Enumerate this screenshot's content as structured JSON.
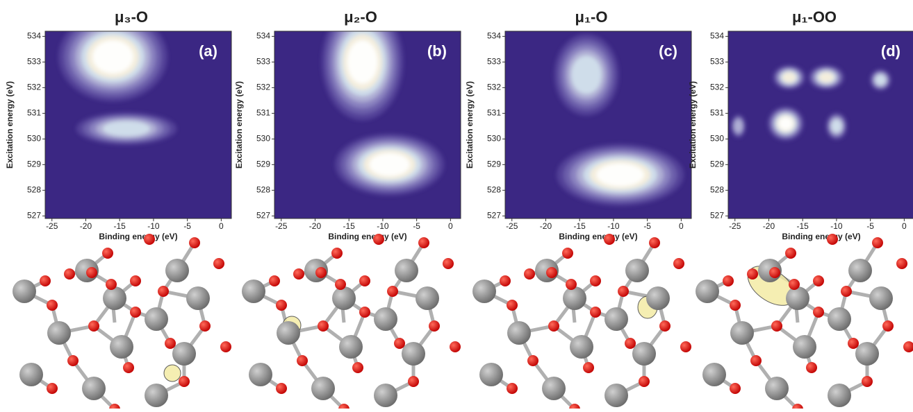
{
  "chart_data": [
    {
      "type": "contour",
      "title": "μ₃-O",
      "label": "(a)",
      "x_label": "Binding energy (eV)",
      "y_label": "Excitation energy (eV)",
      "xlim": [
        -26,
        1.5
      ],
      "ylim": [
        526.9,
        534.2
      ],
      "xticks": [
        -25,
        -20,
        -15,
        -10,
        -5,
        0
      ],
      "yticks": [
        527,
        528,
        529,
        530,
        531,
        532,
        533,
        534
      ],
      "colors": [
        "#3b2783",
        "#54449a",
        "#6f62ad",
        "#8e86c2",
        "#b2b3d6",
        "#d3e2ec",
        "#f7efdc",
        "#ffffff"
      ],
      "peaks": [
        {
          "x": -16,
          "y": 533.2,
          "sx": 6,
          "sy": 1.3,
          "level": 7
        },
        {
          "x": -14,
          "y": 530.4,
          "sx": 7,
          "sy": 0.6,
          "level": 5
        }
      ]
    },
    {
      "type": "contour",
      "title": "μ₂-O",
      "label": "(b)",
      "x_label": "Binding energy (eV)",
      "y_label": "Excitation energy (eV)",
      "xlim": [
        -26,
        1.5
      ],
      "ylim": [
        526.9,
        534.2
      ],
      "xticks": [
        -25,
        -20,
        -15,
        -10,
        -5,
        0
      ],
      "yticks": [
        527,
        528,
        529,
        530,
        531,
        532,
        533,
        534
      ],
      "colors": [
        "#3b2783",
        "#54449a",
        "#6f62ad",
        "#8e86c2",
        "#b2b3d6",
        "#d3e2ec",
        "#f7efdc",
        "#ffffff"
      ],
      "peaks": [
        {
          "x": -13,
          "y": 533,
          "sx": 4.5,
          "sy": 1.7,
          "level": 7
        },
        {
          "x": -9,
          "y": 529,
          "sx": 6,
          "sy": 0.9,
          "level": 7
        }
      ]
    },
    {
      "type": "contour",
      "title": "μ₁-O",
      "label": "(c)",
      "x_label": "Binding energy (eV)",
      "y_label": "Excitation energy (eV)",
      "xlim": [
        -26,
        1.5
      ],
      "ylim": [
        526.9,
        534.2
      ],
      "xticks": [
        -25,
        -20,
        -15,
        -10,
        -5,
        0
      ],
      "yticks": [
        527,
        528,
        529,
        530,
        531,
        532,
        533,
        534
      ],
      "colors": [
        "#3b2783",
        "#54449a",
        "#6f62ad",
        "#8e86c2",
        "#b2b3d6",
        "#d3e2ec",
        "#f7efdc",
        "#ffffff"
      ],
      "peaks": [
        {
          "x": -14,
          "y": 532.5,
          "sx": 4.5,
          "sy": 1.5,
          "level": 5
        },
        {
          "x": -9,
          "y": 528.6,
          "sx": 7,
          "sy": 0.9,
          "level": 7
        }
      ]
    },
    {
      "type": "contour",
      "title": "μ₁-OO",
      "label": "(d)",
      "x_label": "Binding energy (eV)",
      "y_label": "Excitation energy (eV)",
      "xlim": [
        -26,
        1.5
      ],
      "ylim": [
        526.9,
        534.2
      ],
      "xticks": [
        -25,
        -20,
        -15,
        -10,
        -5,
        0
      ],
      "yticks": [
        527,
        528,
        529,
        530,
        531,
        532,
        533,
        534
      ],
      "colors": [
        "#3b2783",
        "#54449a",
        "#6f62ad",
        "#8e86c2",
        "#b2b3d6",
        "#d3e2ec",
        "#f7efdc",
        "#ffffff"
      ],
      "peaks": [
        {
          "x": -17,
          "y": 532.4,
          "sx": 2,
          "sy": 0.4,
          "level": 6
        },
        {
          "x": -11.5,
          "y": 532.4,
          "sx": 2.2,
          "sy": 0.4,
          "level": 6
        },
        {
          "x": -3.5,
          "y": 532.3,
          "sx": 1.5,
          "sy": 0.4,
          "level": 5
        },
        {
          "x": -17.5,
          "y": 530.6,
          "sx": 2,
          "sy": 0.5,
          "level": 7
        },
        {
          "x": -10,
          "y": 530.5,
          "sx": 1.5,
          "sy": 0.5,
          "level": 5
        },
        {
          "x": -24.5,
          "y": 530.5,
          "sx": 1.2,
          "sy": 0.5,
          "level": 4
        }
      ]
    }
  ]
}
